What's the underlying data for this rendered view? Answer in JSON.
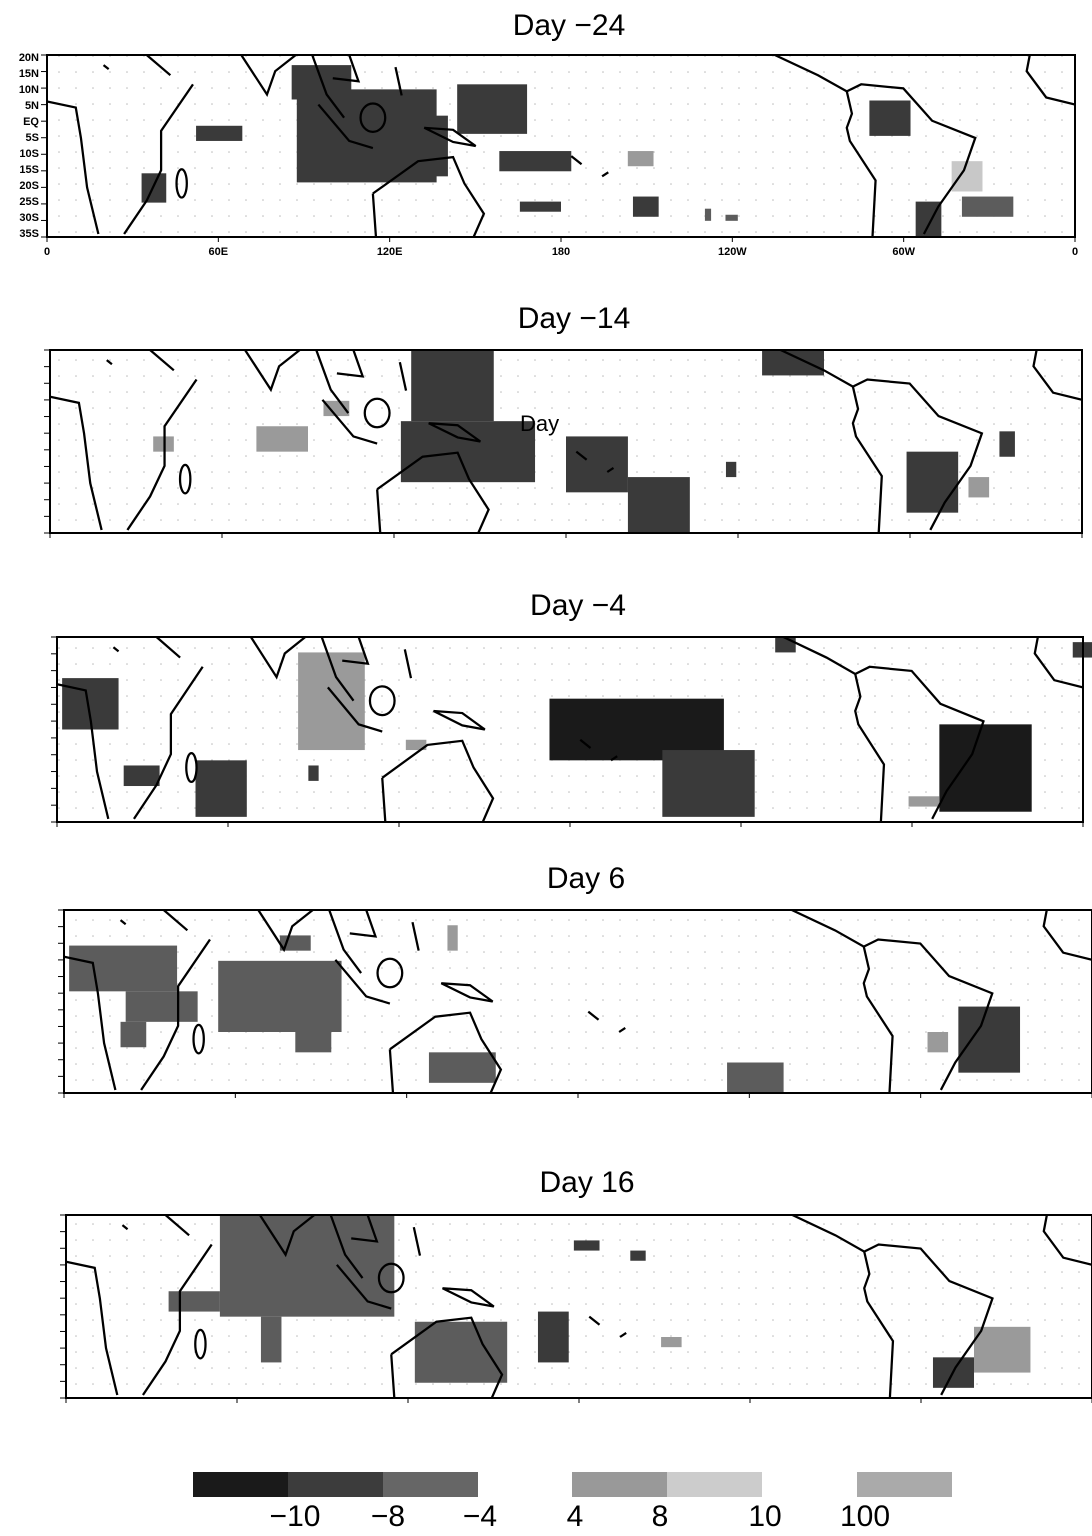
{
  "panels": [
    {
      "title": "Day −24",
      "lat_labels": [
        "20N",
        "15N",
        "10N",
        "5N",
        "EQ",
        "5S",
        "10S",
        "15S",
        "20S",
        "25S",
        "30S",
        "35S"
      ],
      "lon_labels": [
        "0",
        "60E",
        "120E",
        "180",
        "120W",
        "60W",
        "0"
      ]
    },
    {
      "title": "Day −14",
      "annotation": "Day"
    },
    {
      "title": "Day −4"
    },
    {
      "title": "Day 6"
    },
    {
      "title": "Day 16"
    }
  ],
  "legend": {
    "labels": [
      "−10",
      "−8",
      "−4",
      "4",
      "8",
      "10",
      "100"
    ]
  }
}
